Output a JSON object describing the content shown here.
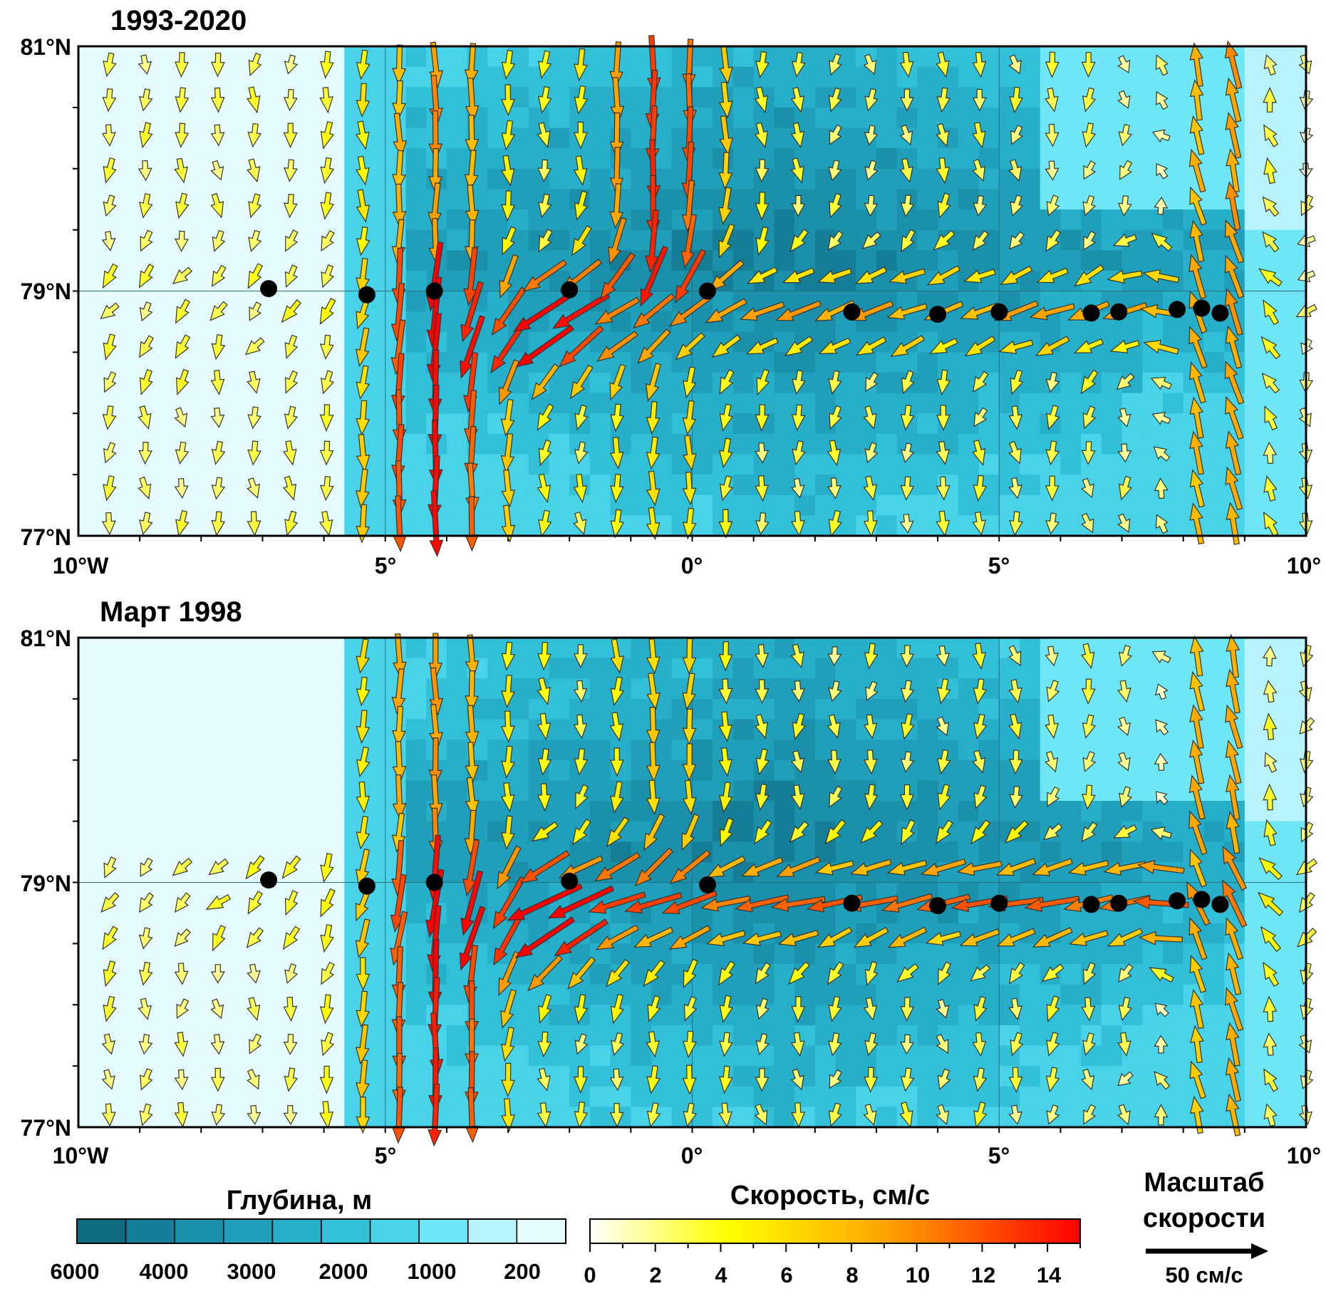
{
  "chart_data": [
    {
      "type": "vector-field-on-bathymetry",
      "title": "1993-2020",
      "xlim": [
        -10,
        10
      ],
      "ylim": [
        77,
        81
      ],
      "x_ticks": [
        "10°W",
        "5°",
        "0°",
        "5°",
        "10°"
      ],
      "y_ticks": [
        "81°N",
        "79°N",
        "77°N"
      ],
      "stations": [
        {
          "lon": -6.9,
          "lat": 79.02
        },
        {
          "lon": -5.3,
          "lat": 78.97
        },
        {
          "lon": -4.2,
          "lat": 79.0
        },
        {
          "lon": -2.0,
          "lat": 79.01
        },
        {
          "lon": 0.25,
          "lat": 79.0
        },
        {
          "lon": 2.6,
          "lat": 78.83
        },
        {
          "lon": 4.0,
          "lat": 78.81
        },
        {
          "lon": 5.0,
          "lat": 78.83
        },
        {
          "lon": 6.5,
          "lat": 78.82
        },
        {
          "lon": 6.95,
          "lat": 78.83
        },
        {
          "lon": 7.9,
          "lat": 78.85
        },
        {
          "lon": 8.3,
          "lat": 78.86
        },
        {
          "lon": 8.6,
          "lat": 78.82
        }
      ]
    },
    {
      "type": "vector-field-on-bathymetry",
      "title": "Март 1998",
      "xlim": [
        -10,
        10
      ],
      "ylim": [
        77,
        81
      ],
      "x_ticks": [
        "10°W",
        "5°",
        "0°",
        "5°",
        "10°"
      ],
      "y_ticks": [
        "81°N",
        "79°N",
        "77°N"
      ],
      "stations": [
        {
          "lon": -6.9,
          "lat": 79.02
        },
        {
          "lon": -5.3,
          "lat": 78.97
        },
        {
          "lon": -4.2,
          "lat": 79.0
        },
        {
          "lon": -2.0,
          "lat": 79.01
        },
        {
          "lon": 0.25,
          "lat": 78.98
        },
        {
          "lon": 2.6,
          "lat": 78.83
        },
        {
          "lon": 4.0,
          "lat": 78.81
        },
        {
          "lon": 5.0,
          "lat": 78.83
        },
        {
          "lon": 6.5,
          "lat": 78.82
        },
        {
          "lon": 6.95,
          "lat": 78.83
        },
        {
          "lon": 7.9,
          "lat": 78.85
        },
        {
          "lon": 8.3,
          "lat": 78.86
        },
        {
          "lon": 8.6,
          "lat": 78.82
        }
      ]
    }
  ],
  "depth_legend": {
    "title": "Глубина, м",
    "labels": [
      "6000",
      "4000",
      "3000",
      "2000",
      "1000",
      "200"
    ],
    "colors": [
      "#0d6b82",
      "#157e96",
      "#1b90aa",
      "#209fbb",
      "#27aec9",
      "#32bfd8",
      "#48d3e8",
      "#6fe6f5",
      "#b8f2fa",
      "#e6fbfd"
    ]
  },
  "speed_legend": {
    "title": "Скорость, см/с",
    "labels": [
      "0",
      "2",
      "4",
      "6",
      "8",
      "10",
      "12",
      "14"
    ],
    "stops": [
      "#ffffff",
      "#ffff00",
      "#ffa500",
      "#ff0000"
    ]
  },
  "scale_legend": {
    "title_line1": "Масштаб",
    "title_line2": "скорости",
    "value_label": "50 см/с"
  }
}
